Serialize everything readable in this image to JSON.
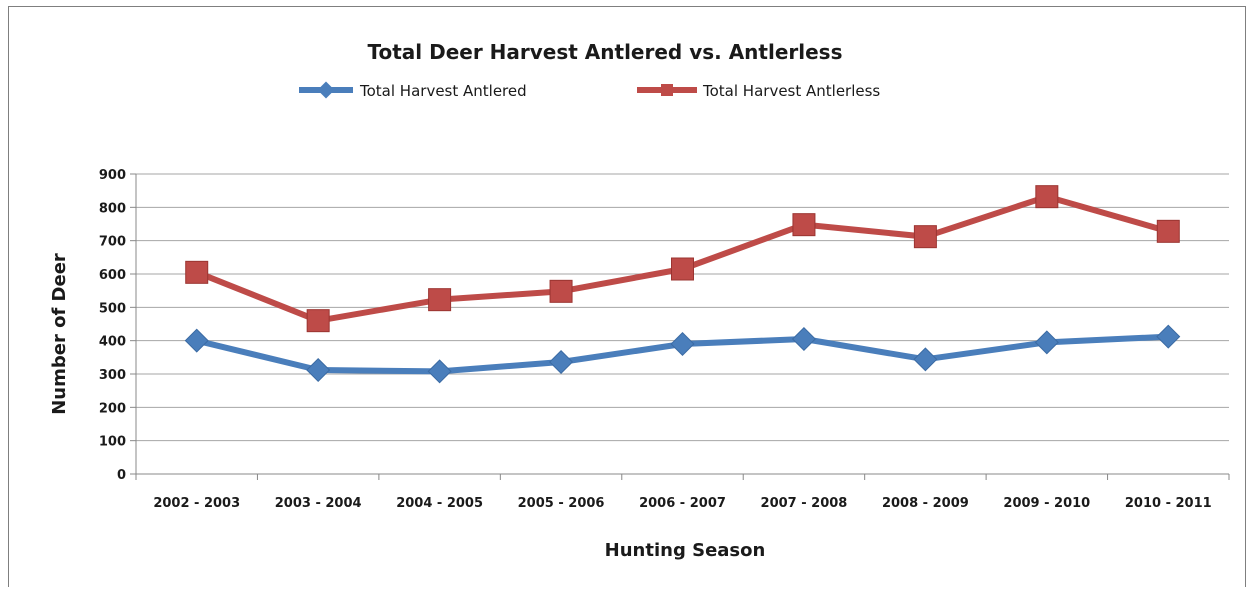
{
  "chart_data": {
    "type": "line",
    "title": "Total Deer Harvest Antlered vs. Antlerless",
    "xlabel": "Hunting Season",
    "ylabel": "Number of Deer",
    "categories": [
      "2002 - 2003",
      "2003 - 2004",
      "2004 - 2005",
      "2005 - 2006",
      "2006 - 2007",
      "2007 - 2008",
      "2008 - 2009",
      "2009 - 2010",
      "2010 - 2011"
    ],
    "yticks": [
      "0",
      "100",
      "200",
      "300",
      "400",
      "500",
      "600",
      "700",
      "800",
      "900"
    ],
    "ylim": [
      0,
      900
    ],
    "grid": "horizontal",
    "legend_position": "top",
    "series": [
      {
        "name": "Total Harvest Antlered",
        "color": "#4a7ebb",
        "marker": "diamond",
        "values": [
          400,
          312,
          308,
          336,
          390,
          405,
          344,
          395,
          412
        ]
      },
      {
        "name": "Total Harvest Antlerless",
        "color": "#be4b48",
        "marker": "square",
        "values": [
          605,
          460,
          523,
          548,
          615,
          748,
          712,
          832,
          728
        ]
      }
    ]
  }
}
